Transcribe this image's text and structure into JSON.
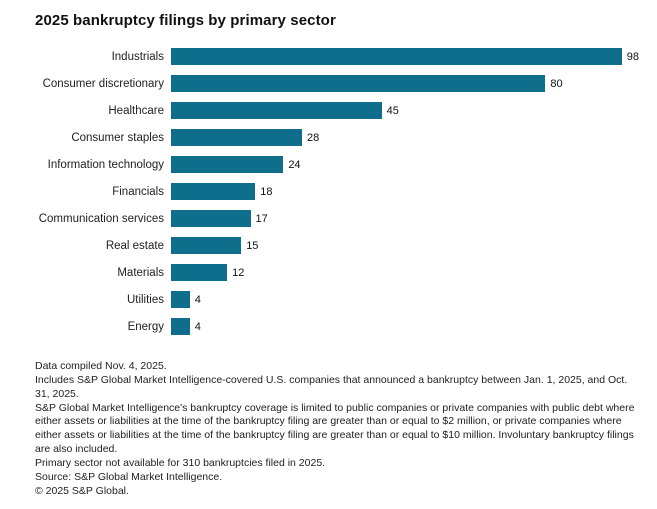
{
  "title": "2025 bankruptcy filings by primary sector",
  "chart_data": {
    "type": "bar",
    "orientation": "horizontal",
    "title": "2025 bankruptcy filings by primary sector",
    "categories": [
      "Industrials",
      "Consumer discretionary",
      "Healthcare",
      "Consumer staples",
      "Information technology",
      "Financials",
      "Communication services",
      "Real estate",
      "Materials",
      "Utilities",
      "Energy"
    ],
    "values": [
      98,
      80,
      45,
      28,
      24,
      18,
      17,
      15,
      12,
      4,
      4
    ],
    "xlabel": "",
    "ylabel": "",
    "xlim": [
      0,
      100
    ],
    "grid": false,
    "legend": false,
    "bar_color": "#0e6e8c",
    "value_labels_shown": true
  },
  "footnotes": [
    "Data compiled Nov. 4, 2025.",
    "Includes S&P Global Market Intelligence-covered U.S. companies that announced a bankruptcy between Jan. 1, 2025, and Oct. 31, 2025.",
    "S&P Global Market Intelligence's bankruptcy coverage is limited to public companies or private companies with public debt where either assets or liabilities at the time of the bankruptcy filing are greater than or equal to $2 million, or private companies where either assets or liabilities at the time of the bankruptcy filing are greater than or equal to $10 million. Involuntary bankruptcy filings are also included.",
    "Primary sector not available for 310 bankruptcies filed in 2025.",
    "Source: S&P Global Market Intelligence.",
    "© 2025 S&P Global."
  ]
}
